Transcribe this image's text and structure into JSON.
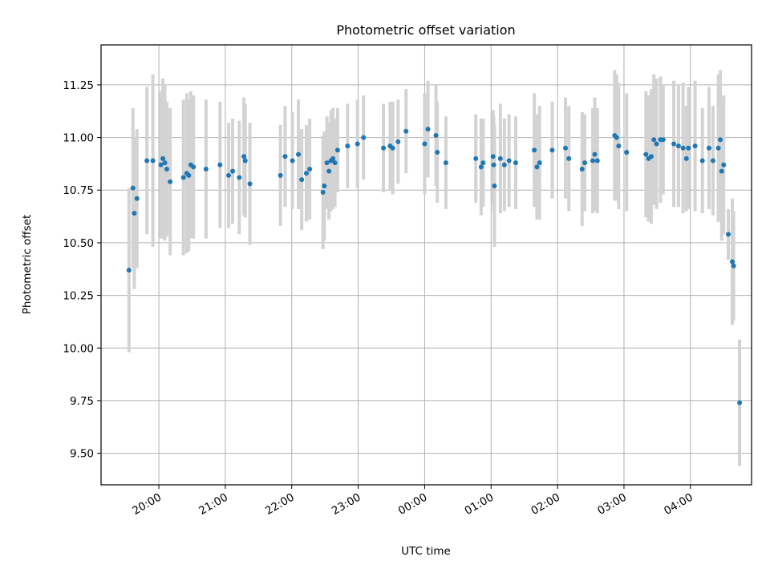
{
  "chart_data": {
    "type": "scatter",
    "title": "Photometric offset variation",
    "xlabel": "UTC time",
    "ylabel": "Photometric offset",
    "x_unit": "hours from 00:00 UTC",
    "xlim": [
      -4.87,
      4.92
    ],
    "ylim": [
      9.35,
      11.44
    ],
    "x_ticks": [
      {
        "value": -4,
        "label": "20:00"
      },
      {
        "value": -3,
        "label": "21:00"
      },
      {
        "value": -2,
        "label": "22:00"
      },
      {
        "value": -1,
        "label": "23:00"
      },
      {
        "value": 0,
        "label": "00:00"
      },
      {
        "value": 1,
        "label": "01:00"
      },
      {
        "value": 2,
        "label": "02:00"
      },
      {
        "value": 3,
        "label": "03:00"
      },
      {
        "value": 4,
        "label": "04:00"
      }
    ],
    "y_ticks": [
      {
        "value": 9.5,
        "label": "9.50"
      },
      {
        "value": 9.75,
        "label": "9.75"
      },
      {
        "value": 10.0,
        "label": "10.00"
      },
      {
        "value": 10.25,
        "label": "10.25"
      },
      {
        "value": 10.5,
        "label": "10.50"
      },
      {
        "value": 10.75,
        "label": "10.75"
      },
      {
        "value": 11.0,
        "label": "11.00"
      },
      {
        "value": 11.25,
        "label": "11.25"
      }
    ],
    "grid": true,
    "colors": {
      "marker": "#1f77b4",
      "errorbar": "#d3d3d3",
      "grid": "#b0b0b0"
    },
    "points": [
      [
        -4.45,
        10.37,
        0.39
      ],
      [
        -4.39,
        10.76,
        0.38
      ],
      [
        -4.37,
        10.64,
        0.36
      ],
      [
        -4.33,
        10.71,
        0.33
      ],
      [
        -4.18,
        10.89,
        0.35
      ],
      [
        -4.09,
        10.89,
        0.41
      ],
      [
        -3.97,
        10.87,
        0.35
      ],
      [
        -3.94,
        10.9,
        0.38
      ],
      [
        -3.91,
        10.88,
        0.37
      ],
      [
        -3.88,
        10.85,
        0.32
      ],
      [
        -3.83,
        10.79,
        0.35
      ],
      [
        -3.63,
        10.81,
        0.37
      ],
      [
        -3.58,
        10.83,
        0.38
      ],
      [
        -3.55,
        10.82,
        0.36
      ],
      [
        -3.52,
        10.87,
        0.35
      ],
      [
        -3.48,
        10.86,
        0.34
      ],
      [
        -3.29,
        10.85,
        0.33
      ],
      [
        -3.08,
        10.87,
        0.3
      ],
      [
        -2.95,
        10.82,
        0.25
      ],
      [
        -2.89,
        10.84,
        0.25
      ],
      [
        -2.79,
        10.81,
        0.27
      ],
      [
        -2.72,
        10.91,
        0.28
      ],
      [
        -2.7,
        10.89,
        0.27
      ],
      [
        -2.63,
        10.78,
        0.29
      ],
      [
        -2.17,
        10.82,
        0.24
      ],
      [
        -2.1,
        10.91,
        0.24
      ],
      [
        -1.99,
        10.89,
        0.23
      ],
      [
        -1.9,
        10.92,
        0.26
      ],
      [
        -1.85,
        10.8,
        0.24
      ],
      [
        -1.78,
        10.83,
        0.23
      ],
      [
        -1.73,
        10.85,
        0.24
      ],
      [
        -1.53,
        10.74,
        0.27
      ],
      [
        -1.51,
        10.77,
        0.26
      ],
      [
        -1.47,
        10.88,
        0.22
      ],
      [
        -1.44,
        10.84,
        0.23
      ],
      [
        -1.41,
        10.89,
        0.24
      ],
      [
        -1.38,
        10.9,
        0.24
      ],
      [
        -1.35,
        10.88,
        0.21
      ],
      [
        -1.31,
        10.94,
        0.2
      ],
      [
        -1.16,
        10.96,
        0.2
      ],
      [
        -1.01,
        10.97,
        0.21
      ],
      [
        -0.92,
        11.0,
        0.2
      ],
      [
        -0.62,
        10.95,
        0.21
      ],
      [
        -0.52,
        10.96,
        0.21
      ],
      [
        -0.48,
        10.95,
        0.22
      ],
      [
        -0.4,
        10.98,
        0.2
      ],
      [
        -0.28,
        11.03,
        0.2
      ],
      [
        0.0,
        10.97,
        0.24
      ],
      [
        0.05,
        11.04,
        0.23
      ],
      [
        0.17,
        11.01,
        0.24
      ],
      [
        0.19,
        10.93,
        0.24
      ],
      [
        0.32,
        10.88,
        0.22
      ],
      [
        0.77,
        10.9,
        0.21
      ],
      [
        0.85,
        10.86,
        0.23
      ],
      [
        0.88,
        10.88,
        0.21
      ],
      [
        1.03,
        10.91,
        0.22
      ],
      [
        1.04,
        10.87,
        0.23
      ],
      [
        1.05,
        10.77,
        0.29
      ],
      [
        1.14,
        10.9,
        0.26
      ],
      [
        1.2,
        10.87,
        0.22
      ],
      [
        1.27,
        10.89,
        0.22
      ],
      [
        1.37,
        10.88,
        0.22
      ],
      [
        1.65,
        10.94,
        0.27
      ],
      [
        1.69,
        10.86,
        0.25
      ],
      [
        1.73,
        10.88,
        0.27
      ],
      [
        1.92,
        10.94,
        0.23
      ],
      [
        2.12,
        10.95,
        0.24
      ],
      [
        2.17,
        10.9,
        0.25
      ],
      [
        2.37,
        10.85,
        0.27
      ],
      [
        2.41,
        10.88,
        0.23
      ],
      [
        2.53,
        10.89,
        0.25
      ],
      [
        2.56,
        10.92,
        0.27
      ],
      [
        2.6,
        10.89,
        0.25
      ],
      [
        2.86,
        11.01,
        0.31
      ],
      [
        2.89,
        11.0,
        0.3
      ],
      [
        2.92,
        10.96,
        0.3
      ],
      [
        3.04,
        10.93,
        0.28
      ],
      [
        3.33,
        10.92,
        0.3
      ],
      [
        3.37,
        10.9,
        0.3
      ],
      [
        3.41,
        10.91,
        0.32
      ],
      [
        3.45,
        10.99,
        0.31
      ],
      [
        3.49,
        10.97,
        0.31
      ],
      [
        3.55,
        10.99,
        0.3
      ],
      [
        3.59,
        10.99,
        0.26
      ],
      [
        3.75,
        10.97,
        0.3
      ],
      [
        3.82,
        10.96,
        0.29
      ],
      [
        3.89,
        10.95,
        0.31
      ],
      [
        3.94,
        10.9,
        0.25
      ],
      [
        3.97,
        10.95,
        0.29
      ],
      [
        4.07,
        10.96,
        0.31
      ],
      [
        4.18,
        10.89,
        0.25
      ],
      [
        4.28,
        10.95,
        0.29
      ],
      [
        4.34,
        10.89,
        0.26
      ],
      [
        4.42,
        10.95,
        0.35
      ],
      [
        4.45,
        10.99,
        0.33
      ],
      [
        4.47,
        10.84,
        0.33
      ],
      [
        4.5,
        10.87,
        0.33
      ],
      [
        4.57,
        10.54,
        0.12
      ],
      [
        4.63,
        10.41,
        0.3
      ],
      [
        4.65,
        10.39,
        0.26
      ],
      [
        4.74,
        9.74,
        0.3
      ]
    ]
  }
}
